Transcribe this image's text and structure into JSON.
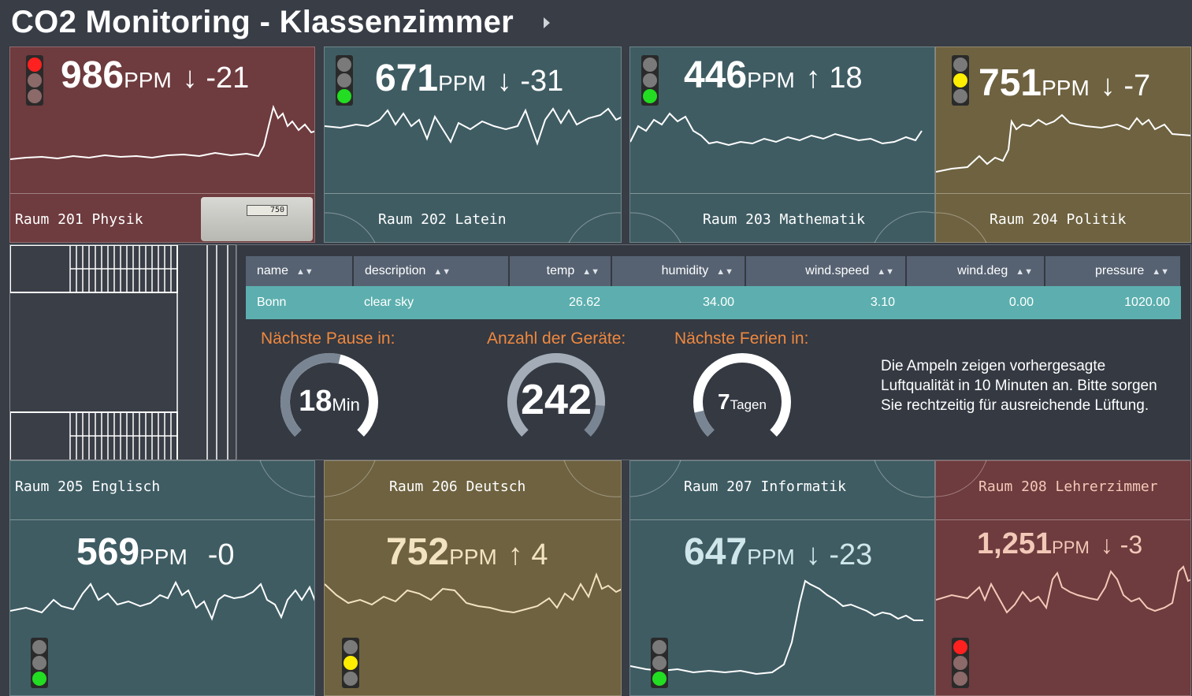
{
  "header": {
    "title": "CO2 Monitoring - Klassenzimmer"
  },
  "rooms": [
    {
      "name": "Raum 201 Physik",
      "ppm": "986",
      "unit": "PPM",
      "trend": "↓ -21",
      "light": "red"
    },
    {
      "name": "Raum 202 Latein",
      "ppm": "671",
      "unit": "PPM",
      "trend": "↓ -31",
      "light": "green"
    },
    {
      "name": "Raum 203 Mathematik",
      "ppm": "446",
      "unit": "PPM",
      "trend": "↑ 18",
      "light": "green"
    },
    {
      "name": "Raum 204 Politik",
      "ppm": "751",
      "unit": "PPM",
      "trend": "↓ -7",
      "light": "yellow"
    },
    {
      "name": "Raum 205 Englisch",
      "ppm": "569",
      "unit": "PPM",
      "trend": "-0",
      "light": "green"
    },
    {
      "name": "Raum 206 Deutsch",
      "ppm": "752",
      "unit": "PPM",
      "trend": "↑ 4",
      "light": "yellow"
    },
    {
      "name": "Raum 207 Informatik",
      "ppm": "647",
      "unit": "PPM",
      "trend": "↓ -23",
      "light": "green"
    },
    {
      "name": "Raum 208 Lehrerzimmer",
      "ppm": "1,251",
      "unit": "PPM",
      "trend": "↓ -3",
      "light": "red"
    }
  ],
  "device_display": "750",
  "weather_table": {
    "columns": [
      "name",
      "description",
      "temp",
      "humidity",
      "wind.speed",
      "wind.deg",
      "pressure"
    ],
    "rows": [
      [
        "Bonn",
        "clear sky",
        "26.62",
        "34.00",
        "3.10",
        "0.00",
        "1020.00"
      ]
    ]
  },
  "stats": {
    "pause": {
      "heading": "Nächste Pause in:",
      "value": "18",
      "unit": "Min",
      "fraction": 0.55
    },
    "devices": {
      "heading": "Anzahl der Geräte:",
      "value": "242",
      "unit": "",
      "fraction": 0.85
    },
    "holidays": {
      "heading": "Nächste Ferien in:",
      "value": "7",
      "unit": "Tagen",
      "fraction": 0.12
    }
  },
  "info_text": "Die Ampeln zeigen vorhergesagte Luftqualität in 10 Minuten an. Bitte sorgen Sie rechtzeitig für ausreichende Lüftung.",
  "colors": {
    "accent_orange": "#f0883e",
    "table_row": "#5cafae",
    "table_header": "#566272"
  }
}
